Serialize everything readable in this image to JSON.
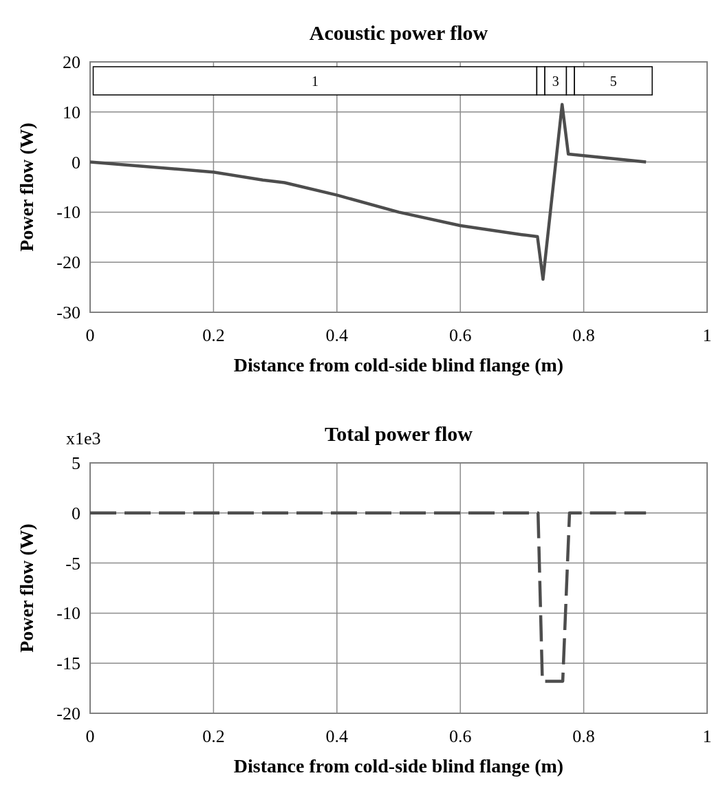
{
  "chart_data": [
    {
      "type": "line",
      "title": "Acoustic power flow",
      "xlabel": "Distance from cold-side blind flange (m)",
      "ylabel": "Power flow (W)",
      "xlim": [
        0,
        1
      ],
      "xticks": [
        0,
        0.2,
        0.4,
        0.6,
        0.8,
        1
      ],
      "ylim": [
        -30,
        20
      ],
      "yticks": [
        -30,
        -20,
        -10,
        0,
        10,
        20
      ],
      "grid": true,
      "line_style": "solid",
      "series": [
        {
          "color": "#4d4d4d",
          "x": [
            0,
            0.2,
            0.28,
            0.315,
            0.4,
            0.5,
            0.6,
            0.7,
            0.725,
            0.734,
            0.765,
            0.775,
            0.901
          ],
          "values": [
            0,
            -2,
            -3.6,
            -4.1,
            -6.6,
            -10,
            -12.7,
            -14.5,
            -14.9,
            -23.4,
            11.5,
            1.6,
            0
          ]
        }
      ],
      "bands": [
        {
          "axis": "x",
          "from": 0.005,
          "to": 0.724,
          "label": "1"
        },
        {
          "axis": "x",
          "from": 0.724,
          "to": 0.737,
          "label": null
        },
        {
          "axis": "x",
          "from": 0.737,
          "to": 0.772,
          "label": "3"
        },
        {
          "axis": "x",
          "from": 0.772,
          "to": 0.785,
          "label": null
        },
        {
          "axis": "x",
          "from": 0.785,
          "to": 0.911,
          "label": "5"
        }
      ]
    },
    {
      "type": "line",
      "title": "Total power flow",
      "xlabel": "Distance from cold-side blind flange (m)",
      "ylabel": "Power flow (W)",
      "xlim": [
        0,
        1
      ],
      "xticks": [
        0,
        0.2,
        0.4,
        0.6,
        0.8,
        1
      ],
      "ylim": [
        -20,
        5
      ],
      "yticks": [
        -20,
        -15,
        -10,
        -5,
        0,
        5
      ],
      "grid": true,
      "line_style": "dashed",
      "annotations": [
        "x1e3"
      ],
      "series": [
        {
          "color": "#4d4d4d",
          "x": [
            0,
            0.726,
            0.733,
            0.766,
            0.777,
            0.901
          ],
          "values": [
            0,
            0,
            -16.8,
            -16.8,
            0,
            0
          ]
        }
      ]
    }
  ]
}
